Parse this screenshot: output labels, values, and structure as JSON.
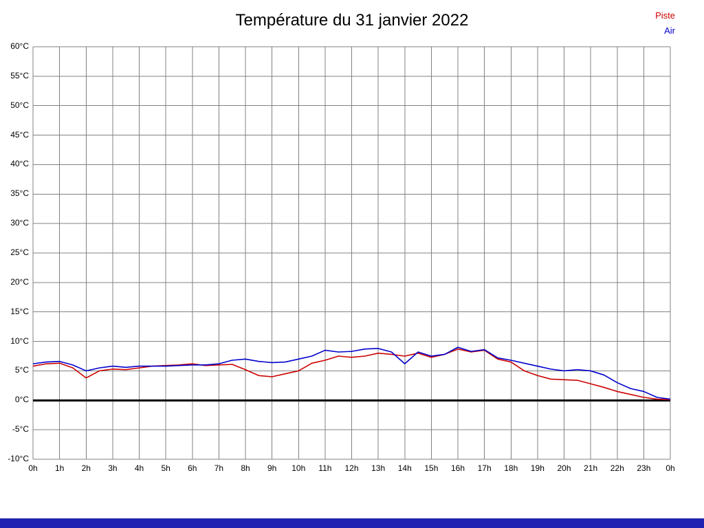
{
  "title": "Température du 31 janvier 2022",
  "legend": {
    "piste": "Piste",
    "air": "Air"
  },
  "colors": {
    "piste": "#cc0000",
    "air": "#0000cc",
    "grid": "#808080",
    "zero_line": "#000000",
    "bottom_bar": "#2222b2"
  },
  "chart_data": {
    "type": "line",
    "title": "Température du 31 janvier 2022",
    "xlabel": "",
    "ylabel": "",
    "xlim": [
      0,
      24
    ],
    "ylim": [
      -10,
      60
    ],
    "grid": true,
    "legend_position": "top-right",
    "x_ticks": [
      0,
      1,
      2,
      3,
      4,
      5,
      6,
      7,
      8,
      9,
      10,
      11,
      12,
      13,
      14,
      15,
      16,
      17,
      18,
      19,
      20,
      21,
      22,
      23,
      24
    ],
    "x_tick_labels": [
      "0h",
      "1h",
      "2h",
      "3h",
      "4h",
      "5h",
      "6h",
      "7h",
      "8h",
      "9h",
      "10h",
      "11h",
      "12h",
      "13h",
      "14h",
      "15h",
      "16h",
      "17h",
      "18h",
      "19h",
      "20h",
      "21h",
      "22h",
      "23h",
      "0h"
    ],
    "y_ticks": [
      60,
      55,
      50,
      45,
      40,
      35,
      30,
      25,
      20,
      15,
      10,
      5,
      0,
      -5,
      -10
    ],
    "y_tick_labels": [
      "60°C",
      "55°C",
      "50°C",
      "45°C",
      "40°C",
      "35°C",
      "30°C",
      "25°C",
      "20°C",
      "15°C",
      "10°C",
      "5°C",
      "0°C",
      "-5°C",
      "-10°C"
    ],
    "x": [
      0,
      0.5,
      1,
      1.5,
      2,
      2.5,
      3,
      3.5,
      4,
      4.5,
      5,
      5.5,
      6,
      6.5,
      7,
      7.5,
      8,
      8.5,
      9,
      9.5,
      10,
      10.5,
      11,
      11.5,
      12,
      12.5,
      13,
      13.5,
      14,
      14.5,
      15,
      15.5,
      16,
      16.5,
      17,
      17.5,
      18,
      18.5,
      19,
      19.5,
      20,
      20.5,
      21,
      21.5,
      22,
      22.5,
      23,
      23.5,
      24
    ],
    "series": [
      {
        "name": "Piste",
        "color": "#cc0000",
        "values": [
          5.8,
          6.2,
          6.3,
          5.5,
          3.8,
          5.0,
          5.3,
          5.2,
          5.5,
          5.8,
          5.9,
          6.0,
          6.2,
          5.9,
          6.0,
          6.1,
          5.2,
          4.2,
          4.0,
          4.5,
          5.0,
          6.3,
          6.8,
          7.5,
          7.3,
          7.5,
          8.0,
          7.8,
          7.5,
          8.0,
          7.3,
          7.8,
          8.7,
          8.2,
          8.5,
          7.0,
          6.5,
          5.0,
          4.2,
          3.6,
          3.5,
          3.4,
          2.8,
          2.2,
          1.5,
          1.0,
          0.5,
          0.2,
          0.1
        ]
      },
      {
        "name": "Air",
        "color": "#0000cc",
        "values": [
          6.2,
          6.5,
          6.6,
          6.0,
          5.0,
          5.5,
          5.8,
          5.6,
          5.8,
          5.8,
          5.8,
          5.9,
          6.0,
          6.0,
          6.2,
          6.8,
          7.0,
          6.6,
          6.4,
          6.5,
          7.0,
          7.5,
          8.5,
          8.2,
          8.3,
          8.7,
          8.8,
          8.2,
          6.2,
          8.2,
          7.5,
          7.8,
          9.0,
          8.3,
          8.6,
          7.2,
          6.8,
          6.3,
          5.8,
          5.3,
          5.0,
          5.2,
          5.0,
          4.3,
          3.0,
          2.0,
          1.5,
          0.5,
          0.2
        ]
      }
    ]
  }
}
